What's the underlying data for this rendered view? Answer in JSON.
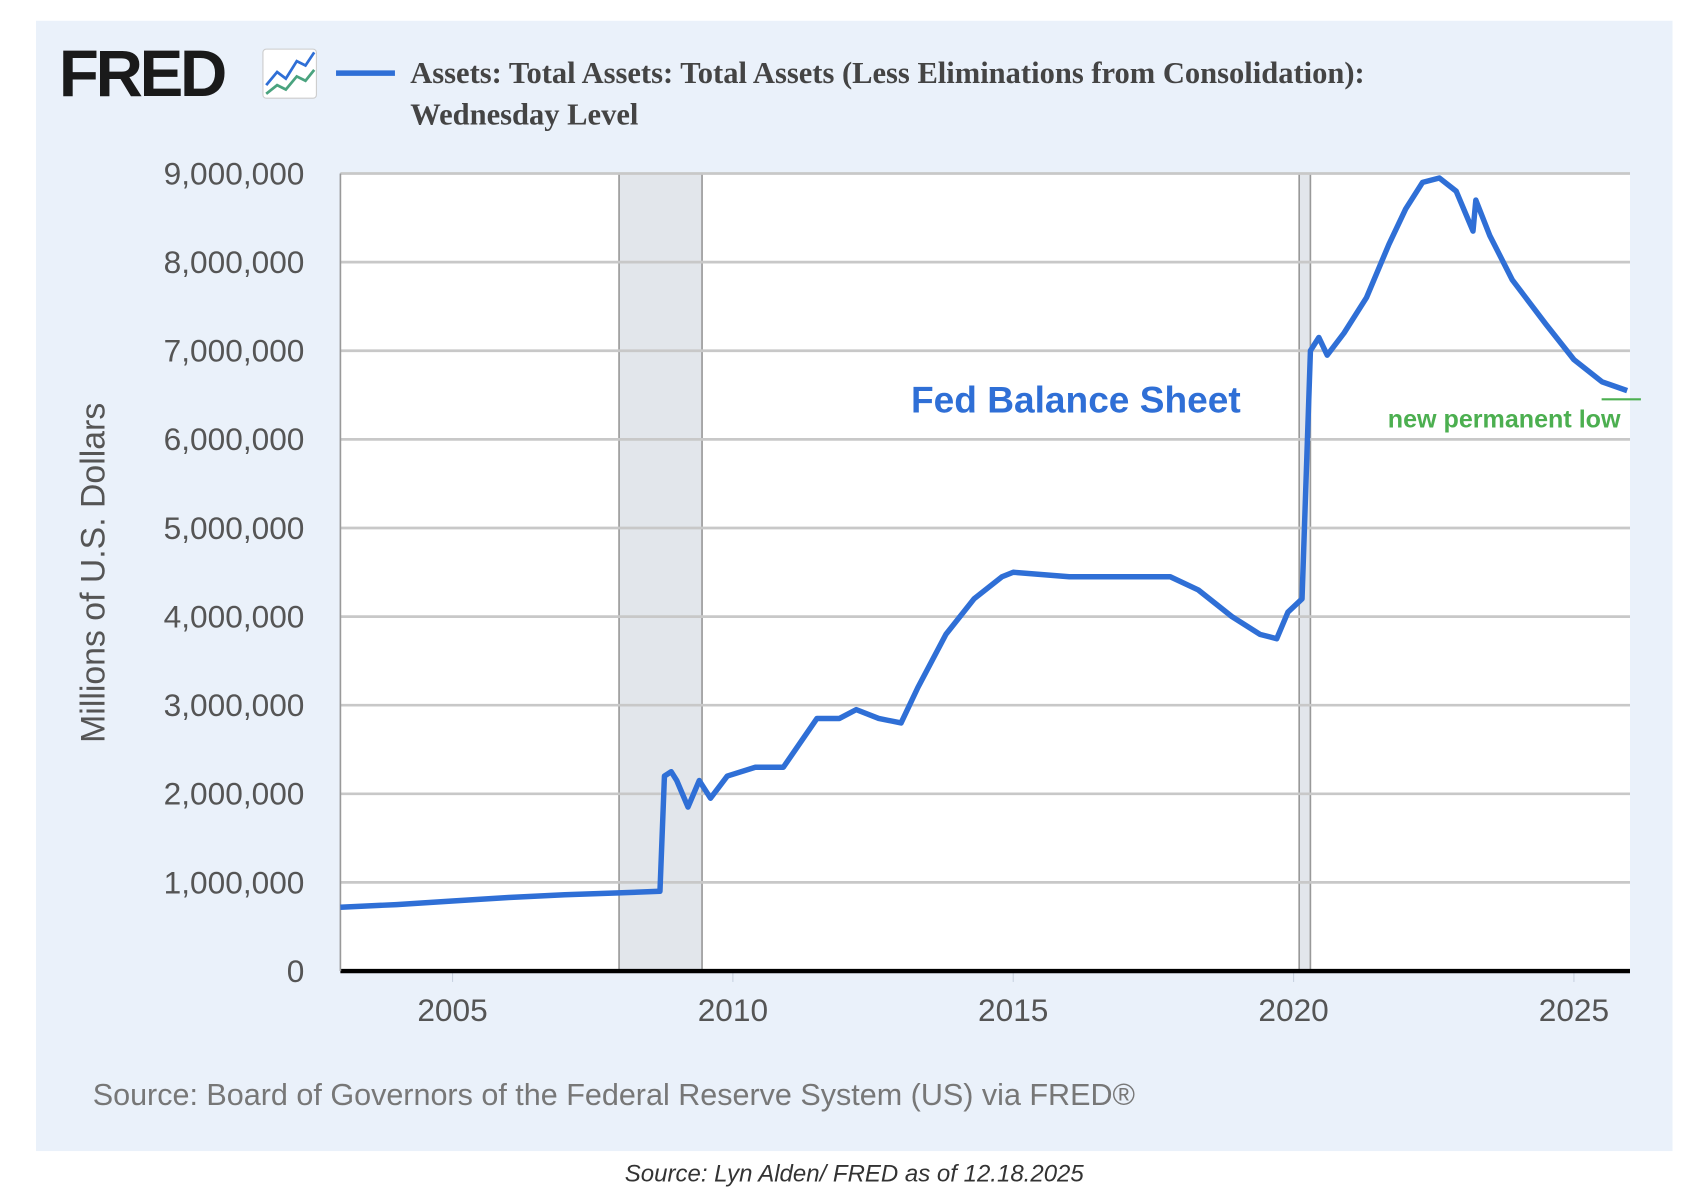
{
  "logo": {
    "text": "FRED",
    "icon": "line-chart-icon"
  },
  "chart_data": {
    "type": "line",
    "title": "Assets: Total Assets: Total Assets (Less Eliminations from Consolidation): Wednesday Level",
    "title_lines": [
      "Assets: Total Assets: Total Assets (Less Eliminations from Consolidation):",
      "Wednesday Level"
    ],
    "ylabel": "Millions of U.S. Dollars",
    "xlabel": "",
    "xlim": [
      2003.0,
      2026.0
    ],
    "ylim": [
      0,
      9000000
    ],
    "yticks": [
      0,
      1000000,
      2000000,
      3000000,
      4000000,
      5000000,
      6000000,
      7000000,
      8000000,
      9000000
    ],
    "ytick_labels": [
      "0",
      "1,000,000",
      "2,000,000",
      "3,000,000",
      "4,000,000",
      "5,000,000",
      "6,000,000",
      "7,000,000",
      "8,000,000",
      "9,000,000"
    ],
    "xticks": [
      2005,
      2010,
      2015,
      2020,
      2025
    ],
    "xtick_labels": [
      "2005",
      "2010",
      "2015",
      "2020",
      "2025"
    ],
    "grid": true,
    "recessions": [
      [
        2007.97,
        2009.45
      ],
      [
        2020.1,
        2020.3
      ]
    ],
    "series": [
      {
        "name": "Total Assets",
        "color": "#2f6fd6",
        "x": [
          2003.0,
          2004.0,
          2005.0,
          2006.0,
          2007.0,
          2007.9,
          2008.7,
          2008.78,
          2008.9,
          2009.0,
          2009.2,
          2009.4,
          2009.6,
          2009.9,
          2010.4,
          2010.9,
          2011.5,
          2011.9,
          2012.2,
          2012.6,
          2013.0,
          2013.3,
          2013.8,
          2014.3,
          2014.8,
          2015.0,
          2016.0,
          2017.0,
          2017.8,
          2018.3,
          2018.9,
          2019.4,
          2019.7,
          2019.9,
          2020.15,
          2020.3,
          2020.45,
          2020.6,
          2020.9,
          2021.3,
          2021.7,
          2022.0,
          2022.3,
          2022.6,
          2022.9,
          2023.2,
          2023.25,
          2023.5,
          2023.9,
          2024.5,
          2025.0,
          2025.5,
          2025.95
        ],
        "values": [
          720000,
          750000,
          790000,
          830000,
          860000,
          880000,
          900000,
          2200000,
          2250000,
          2150000,
          1850000,
          2150000,
          1950000,
          2200000,
          2300000,
          2300000,
          2850000,
          2850000,
          2950000,
          2850000,
          2800000,
          3200000,
          3800000,
          4200000,
          4450000,
          4500000,
          4450000,
          4450000,
          4450000,
          4300000,
          4000000,
          3800000,
          3750000,
          4050000,
          4200000,
          7000000,
          7150000,
          6950000,
          7200000,
          7600000,
          8200000,
          8600000,
          8900000,
          8950000,
          8800000,
          8350000,
          8700000,
          8300000,
          7800000,
          7300000,
          6900000,
          6650000,
          6550000
        ]
      }
    ],
    "annotations": [
      {
        "text": "Fed Balance Sheet",
        "color": "#2f6fd6"
      },
      {
        "text": "new permanent low",
        "color": "#4caf50"
      }
    ],
    "source": "Source: Board of Governors of the Federal Reserve System (US) via FRED®"
  },
  "caption": "Source: Lyn Alden/ FRED as of 12.18.2025"
}
